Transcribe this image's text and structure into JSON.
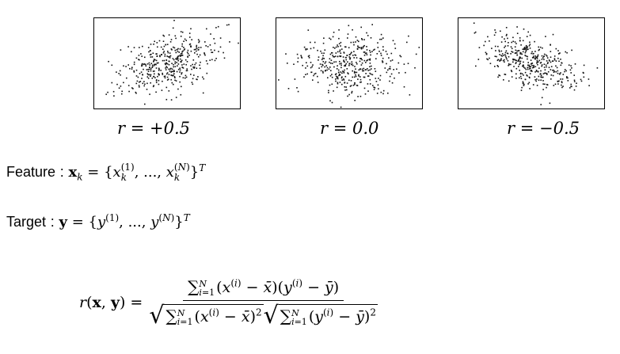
{
  "chart_data": [
    {
      "type": "scatter",
      "correlation": 0.5,
      "x_range": [
        -3,
        3
      ],
      "y_range": [
        -3,
        3
      ],
      "n_points": 420,
      "caption": "r = +0.5"
    },
    {
      "type": "scatter",
      "correlation": 0.0,
      "x_range": [
        -3,
        3
      ],
      "y_range": [
        -3,
        3
      ],
      "n_points": 420,
      "caption": "r = 0.0"
    },
    {
      "type": "scatter",
      "correlation": -0.5,
      "x_range": [
        -3,
        3
      ],
      "y_range": [
        -3,
        3
      ],
      "n_points": 420,
      "caption": "r = −0.5"
    }
  ],
  "definitions": {
    "feature": {
      "word": "Feature",
      "colon": ":"
    },
    "target": {
      "word": "Target",
      "colon": ":"
    }
  },
  "formula": {
    "lhs": "r(x, y) ="
  }
}
